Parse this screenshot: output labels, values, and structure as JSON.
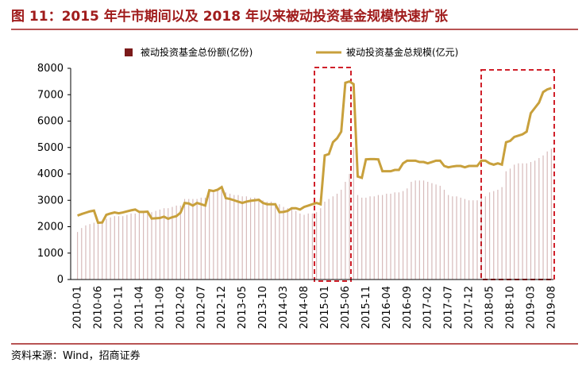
{
  "chart_data": {
    "type": "bar_line",
    "title": "图 11：2015 年牛市期间以及 2018 年以来被动投资基金规模快速扩张",
    "source": "资料来源：Wind，招商证券",
    "categories": [
      "2010-01",
      null,
      null,
      null,
      null,
      "2010-06",
      null,
      null,
      null,
      null,
      "2010-11",
      null,
      null,
      null,
      null,
      "2011-04",
      null,
      null,
      null,
      null,
      "2011-09",
      null,
      null,
      null,
      null,
      "2012-02",
      null,
      null,
      null,
      null,
      "2012-07",
      null,
      null,
      null,
      null,
      "2012-12",
      null,
      null,
      null,
      null,
      "2013-05",
      null,
      null,
      null,
      null,
      "2013-10",
      null,
      null,
      null,
      null,
      "2014-03",
      null,
      null,
      null,
      null,
      "2014-08",
      null,
      null,
      null,
      null,
      "2015-01",
      null,
      null,
      null,
      null,
      "2015-06",
      null,
      null,
      null,
      null,
      "2015-11",
      null,
      null,
      null,
      null,
      "2016-04",
      null,
      null,
      null,
      null,
      "2016-09",
      null,
      null,
      null,
      null,
      "2017-02",
      null,
      null,
      null,
      null,
      "2017-07",
      null,
      null,
      null,
      null,
      "2017-12",
      null,
      null,
      null,
      null,
      "2018-05",
      null,
      null,
      null,
      null,
      "2018-10",
      null,
      null,
      null,
      null,
      "2019-03",
      null,
      null,
      null,
      null,
      "2019-08"
    ],
    "series": [
      {
        "name": "被动投资基金总份额(亿份)",
        "color": "#7b1a1a",
        "kind": "bar",
        "values": [
          1800,
          1950,
          2050,
          2100,
          2150,
          2100,
          2150,
          2300,
          2350,
          2400,
          2400,
          2400,
          2450,
          2500,
          2500,
          2550,
          2550,
          2550,
          2550,
          2600,
          2650,
          2700,
          2700,
          2750,
          2800,
          2800,
          3050,
          3050,
          3050,
          3050,
          3100,
          3100,
          3300,
          3300,
          3350,
          3400,
          3300,
          3250,
          3200,
          3200,
          3150,
          3150,
          3100,
          3100,
          3050,
          3000,
          2950,
          2950,
          2900,
          2850,
          2750,
          2700,
          2650,
          2600,
          2500,
          2450,
          2500,
          2500,
          2550,
          2700,
          2950,
          3050,
          3150,
          3250,
          3400,
          3700,
          4000,
          5000,
          3200,
          3100,
          3100,
          3150,
          3150,
          3200,
          3200,
          3250,
          3250,
          3300,
          3300,
          3350,
          3450,
          3700,
          3750,
          3750,
          3750,
          3700,
          3650,
          3600,
          3550,
          3400,
          3200,
          3150,
          3150,
          3100,
          3050,
          3000,
          3000,
          3000,
          3050,
          3150,
          3300,
          3350,
          3400,
          3500,
          4100,
          4200,
          4350,
          4400,
          4400,
          4400,
          4450,
          4500,
          4600,
          4700,
          4850,
          4950
        ]
      },
      {
        "name": "被动投资基金总规模(亿元)",
        "color": "#c8a03c",
        "kind": "line",
        "values": [
          2420,
          2480,
          2530,
          2580,
          2610,
          2150,
          2160,
          2450,
          2500,
          2540,
          2510,
          2540,
          2580,
          2620,
          2650,
          2560,
          2560,
          2570,
          2310,
          2320,
          2330,
          2380,
          2300,
          2360,
          2400,
          2530,
          2900,
          2880,
          2800,
          2900,
          2850,
          2800,
          3380,
          3350,
          3400,
          3500,
          3080,
          3050,
          3000,
          2950,
          2900,
          2950,
          2980,
          3000,
          3020,
          2900,
          2850,
          2850,
          2850,
          2550,
          2560,
          2600,
          2700,
          2700,
          2650,
          2750,
          2800,
          2850,
          2900,
          2850,
          4700,
          4750,
          5200,
          5350,
          5600,
          7450,
          7500,
          7400,
          3900,
          3850,
          4550,
          4560,
          4560,
          4550,
          4100,
          4100,
          4100,
          4150,
          4150,
          4400,
          4500,
          4500,
          4500,
          4450,
          4450,
          4400,
          4450,
          4500,
          4500,
          4300,
          4250,
          4280,
          4300,
          4300,
          4250,
          4300,
          4300,
          4300,
          4500,
          4500,
          4400,
          4350,
          4400,
          4350,
          5200,
          5250,
          5400,
          5450,
          5500,
          5600,
          6300,
          6500,
          6700,
          7100,
          7200,
          7250
        ]
      }
    ],
    "ylim": [
      0,
      8000
    ],
    "yticks": [
      0,
      1000,
      2000,
      3000,
      4000,
      5000,
      6000,
      7000,
      8000
    ]
  }
}
